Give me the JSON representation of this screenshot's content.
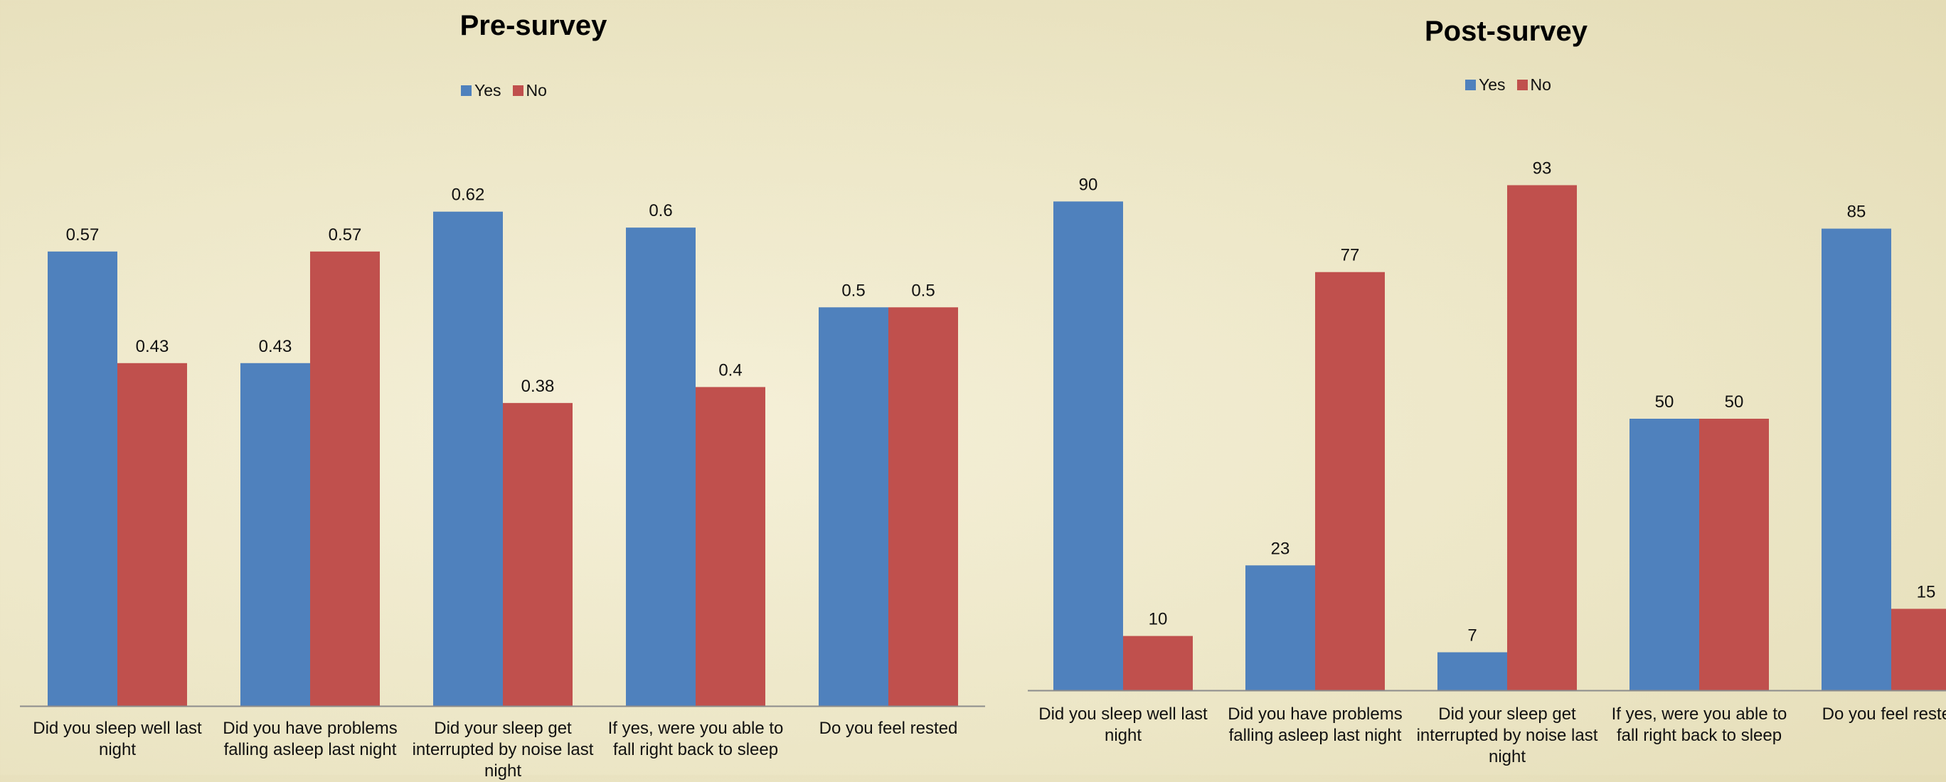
{
  "page_heading": "",
  "colors": {
    "yes": "#4f81bd",
    "no": "#c0504d",
    "axis": "#8c8c8c"
  },
  "chart_data": [
    {
      "type": "bar",
      "title": "Pre-survey",
      "categories": [
        "Did you sleep well last night",
        "Did you have problems falling asleep last night",
        "Did your sleep get interrupted by noise last night",
        "If yes, were you able to fall right back to sleep",
        "Do you feel rested"
      ],
      "series": [
        {
          "name": "Yes",
          "values": [
            0.57,
            0.43,
            0.62,
            0.6,
            0.5
          ]
        },
        {
          "name": "No",
          "values": [
            0.43,
            0.57,
            0.38,
            0.4,
            0.5
          ]
        }
      ],
      "ylim": [
        0,
        0.7
      ],
      "legend": "top-center",
      "grid": false,
      "xlabel": "",
      "ylabel": ""
    },
    {
      "type": "bar",
      "title": "Post-survey",
      "categories": [
        "Did you sleep well last night",
        "Did you have problems falling asleep last night",
        "Did your sleep get interrupted by noise last night",
        "If yes, were you able to fall right back to sleep",
        "Do you feel rested"
      ],
      "series": [
        {
          "name": "Yes",
          "values": [
            90,
            23,
            7,
            50,
            85
          ]
        },
        {
          "name": "No",
          "values": [
            10,
            77,
            93,
            50,
            15
          ]
        }
      ],
      "ylim": [
        0,
        100
      ],
      "legend": "top-center",
      "grid": false,
      "xlabel": "",
      "ylabel": ""
    }
  ]
}
